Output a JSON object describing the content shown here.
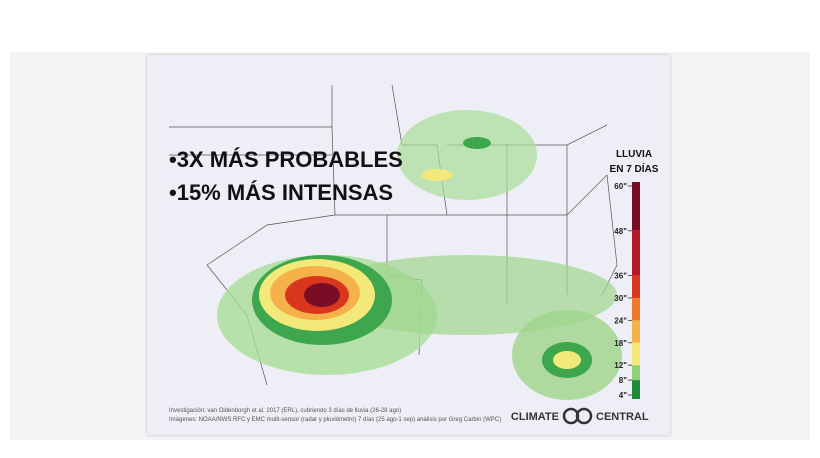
{
  "headline": [
    "•3X MÁS PROBABLES",
    "•15% MÁS INTENSAS"
  ],
  "legend": {
    "title": [
      "LLUVIA",
      "EN 7 DÍAS"
    ],
    "ticks": [
      {
        "value": 4,
        "label": "4\""
      },
      {
        "value": 8,
        "label": "8\""
      },
      {
        "value": 12,
        "label": "12\""
      },
      {
        "value": 18,
        "label": "18\""
      },
      {
        "value": 24,
        "label": "24\""
      },
      {
        "value": 30,
        "label": "30\""
      },
      {
        "value": 36,
        "label": "36\""
      },
      {
        "value": 48,
        "label": "48\""
      },
      {
        "value": 60,
        "label": "60\""
      }
    ],
    "colors": [
      "#1e8a3a",
      "#8fd07a",
      "#f3e97a",
      "#f6b24a",
      "#ef7a2a",
      "#d8361f",
      "#b5182a",
      "#7a0c26"
    ]
  },
  "credits": [
    "Investigación: van Oldenborgh et al. 2017 (ERL), cubriendo 3 días de lluvia (26-28 ago)",
    "Imágenes: NOAA/NWS RFC y EMC multi-sensor (radar y pluviómetro) 7 días (25 ago-1 sep) análisis por Greg Carbin (WPC)"
  ],
  "logo": [
    "CLIMATE",
    "CENTRAL"
  ]
}
